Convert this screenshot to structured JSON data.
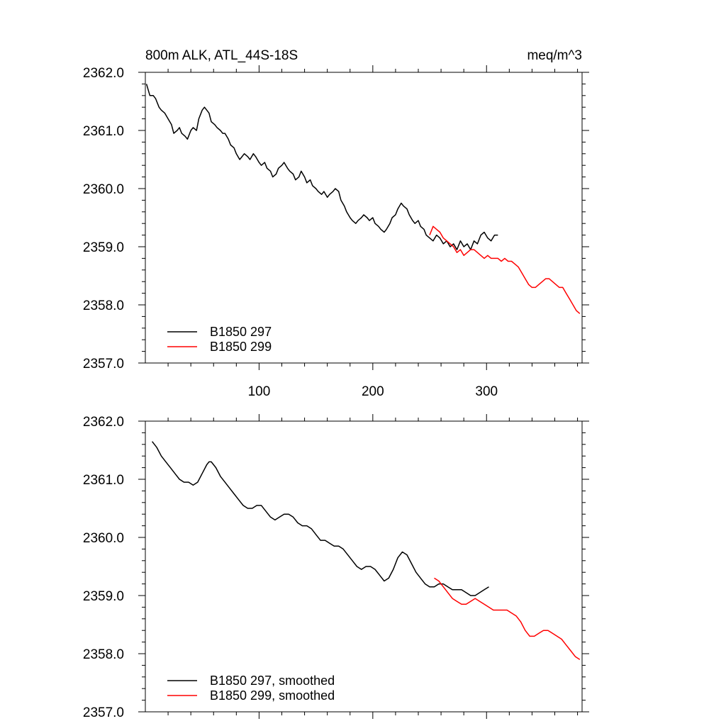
{
  "chart_data": [
    {
      "type": "line",
      "title": "800m ALK, ATL_44S-18S",
      "units": "meq/m^3",
      "xlim": [
        0,
        384
      ],
      "ylim": [
        2357.0,
        2362.0
      ],
      "x_ticks": [
        100,
        200,
        300
      ],
      "x_tick_labels": [
        "100",
        "200",
        "300"
      ],
      "y_ticks": [
        2357.0,
        2358.0,
        2359.0,
        2360.0,
        2361.0,
        2362.0
      ],
      "y_tick_labels": [
        "2357.0",
        "2358.0",
        "2359.0",
        "2360.0",
        "2361.0",
        "2362.0"
      ],
      "legend_position": "bottom-left",
      "series": [
        {
          "name": "B1850 297",
          "color": "#000000",
          "x": [
            1,
            4,
            7,
            9,
            12,
            14,
            17,
            20,
            23,
            25,
            28,
            30,
            32,
            35,
            37,
            40,
            42,
            45,
            47,
            50,
            52,
            54,
            56,
            58,
            61,
            63,
            66,
            68,
            70,
            73,
            75,
            78,
            80,
            83,
            85,
            87,
            90,
            92,
            95,
            97,
            100,
            102,
            105,
            107,
            110,
            112,
            115,
            117,
            120,
            122,
            125,
            127,
            130,
            132,
            135,
            137,
            140,
            142,
            145,
            147,
            150,
            152,
            155,
            157,
            160,
            162,
            165,
            167,
            170,
            172,
            175,
            177,
            180,
            182,
            185,
            187,
            190,
            192,
            195,
            197,
            200,
            202,
            205,
            207,
            210,
            212,
            215,
            217,
            220,
            222,
            225,
            227,
            230,
            232,
            235,
            237,
            240,
            242,
            245,
            247,
            250,
            253,
            256,
            259,
            262,
            265,
            268,
            271,
            274,
            277,
            280,
            283,
            286,
            289,
            292,
            295,
            298,
            301,
            304,
            307,
            310
          ],
          "values": [
            2361.8,
            2361.6,
            2361.6,
            2361.55,
            2361.4,
            2361.35,
            2361.3,
            2361.2,
            2361.1,
            2360.95,
            2361.0,
            2361.05,
            2360.95,
            2360.9,
            2360.85,
            2361.0,
            2361.05,
            2361.0,
            2361.2,
            2361.35,
            2361.4,
            2361.35,
            2361.3,
            2361.15,
            2361.1,
            2361.05,
            2361.0,
            2360.95,
            2360.95,
            2360.85,
            2360.75,
            2360.7,
            2360.6,
            2360.5,
            2360.55,
            2360.6,
            2360.55,
            2360.5,
            2360.6,
            2360.55,
            2360.45,
            2360.4,
            2360.45,
            2360.35,
            2360.3,
            2360.2,
            2360.25,
            2360.35,
            2360.4,
            2360.45,
            2360.35,
            2360.3,
            2360.25,
            2360.15,
            2360.2,
            2360.3,
            2360.2,
            2360.1,
            2360.15,
            2360.05,
            2360.0,
            2359.95,
            2359.9,
            2359.95,
            2359.85,
            2359.9,
            2359.95,
            2360.0,
            2359.95,
            2359.8,
            2359.7,
            2359.6,
            2359.5,
            2359.45,
            2359.4,
            2359.45,
            2359.5,
            2359.55,
            2359.5,
            2359.45,
            2359.5,
            2359.4,
            2359.35,
            2359.3,
            2359.25,
            2359.3,
            2359.4,
            2359.5,
            2359.55,
            2359.65,
            2359.75,
            2359.7,
            2359.65,
            2359.55,
            2359.45,
            2359.4,
            2359.45,
            2359.35,
            2359.3,
            2359.2,
            2359.15,
            2359.1,
            2359.2,
            2359.15,
            2359.05,
            2359.1,
            2359.0,
            2359.05,
            2358.95,
            2359.1,
            2359.0,
            2359.05,
            2358.95,
            2359.1,
            2359.05,
            2359.2,
            2359.25,
            2359.15,
            2359.1,
            2359.2,
            2359.2
          ]
        },
        {
          "name": "B1850 299",
          "color": "#ff0000",
          "x": [
            250,
            253,
            256,
            259,
            262,
            265,
            268,
            271,
            274,
            277,
            280,
            283,
            286,
            289,
            292,
            295,
            298,
            301,
            304,
            307,
            310,
            313,
            316,
            319,
            322,
            325,
            328,
            331,
            334,
            337,
            340,
            343,
            346,
            349,
            352,
            355,
            358,
            361,
            364,
            367,
            370,
            373,
            376,
            379,
            382
          ],
          "values": [
            2359.2,
            2359.35,
            2359.3,
            2359.25,
            2359.15,
            2359.1,
            2359.05,
            2359.0,
            2358.9,
            2358.95,
            2358.85,
            2358.9,
            2358.95,
            2358.95,
            2358.9,
            2358.85,
            2358.8,
            2358.85,
            2358.8,
            2358.8,
            2358.8,
            2358.75,
            2358.8,
            2358.75,
            2358.75,
            2358.7,
            2358.65,
            2358.55,
            2358.45,
            2358.35,
            2358.3,
            2358.3,
            2358.35,
            2358.4,
            2358.45,
            2358.45,
            2358.4,
            2358.35,
            2358.3,
            2358.3,
            2358.2,
            2358.1,
            2358.0,
            2357.9,
            2357.85
          ]
        }
      ]
    },
    {
      "type": "line",
      "title": "",
      "xlim": [
        0,
        384
      ],
      "ylim": [
        2357.0,
        2362.0
      ],
      "x_ticks": [
        100,
        200,
        300
      ],
      "y_ticks": [
        2357.0,
        2358.0,
        2359.0,
        2360.0,
        2361.0,
        2362.0
      ],
      "y_tick_labels": [
        "2357.0",
        "2358.0",
        "2359.0",
        "2360.0",
        "2361.0",
        "2362.0"
      ],
      "legend_position": "bottom-left",
      "series": [
        {
          "name": "B1850 297, smoothed",
          "color": "#000000",
          "x": [
            6,
            10,
            14,
            18,
            22,
            26,
            30,
            34,
            38,
            42,
            46,
            50,
            54,
            56,
            58,
            62,
            66,
            70,
            74,
            78,
            82,
            86,
            90,
            94,
            98,
            102,
            106,
            110,
            114,
            118,
            122,
            126,
            130,
            134,
            138,
            142,
            146,
            150,
            154,
            158,
            162,
            166,
            170,
            174,
            178,
            182,
            186,
            190,
            194,
            198,
            202,
            206,
            210,
            214,
            218,
            222,
            226,
            230,
            234,
            238,
            242,
            246,
            250,
            254,
            258,
            262,
            266,
            270,
            274,
            278,
            282,
            286,
            290,
            294,
            298,
            302
          ],
          "values": [
            2361.65,
            2361.55,
            2361.4,
            2361.3,
            2361.2,
            2361.1,
            2361.0,
            2360.95,
            2360.95,
            2360.9,
            2360.95,
            2361.1,
            2361.25,
            2361.3,
            2361.3,
            2361.2,
            2361.05,
            2360.95,
            2360.85,
            2360.75,
            2360.65,
            2360.55,
            2360.5,
            2360.5,
            2360.55,
            2360.55,
            2360.45,
            2360.35,
            2360.3,
            2360.35,
            2360.4,
            2360.4,
            2360.35,
            2360.25,
            2360.2,
            2360.2,
            2360.15,
            2360.05,
            2359.95,
            2359.95,
            2359.9,
            2359.85,
            2359.85,
            2359.8,
            2359.7,
            2359.6,
            2359.5,
            2359.45,
            2359.5,
            2359.5,
            2359.45,
            2359.35,
            2359.25,
            2359.3,
            2359.45,
            2359.65,
            2359.75,
            2359.7,
            2359.55,
            2359.4,
            2359.3,
            2359.2,
            2359.15,
            2359.15,
            2359.2,
            2359.2,
            2359.15,
            2359.1,
            2359.1,
            2359.1,
            2359.05,
            2359.0,
            2359.0,
            2359.05,
            2359.1,
            2359.15
          ]
        },
        {
          "name": "B1850 299, smoothed",
          "color": "#ff0000",
          "x": [
            254,
            258,
            262,
            266,
            270,
            274,
            278,
            282,
            286,
            290,
            294,
            298,
            302,
            306,
            310,
            314,
            318,
            322,
            326,
            330,
            334,
            338,
            342,
            346,
            350,
            354,
            358,
            362,
            366,
            370,
            374,
            378,
            382
          ],
          "values": [
            2359.3,
            2359.25,
            2359.15,
            2359.05,
            2358.95,
            2358.9,
            2358.85,
            2358.85,
            2358.9,
            2358.95,
            2358.9,
            2358.85,
            2358.8,
            2358.75,
            2358.75,
            2358.75,
            2358.75,
            2358.7,
            2358.65,
            2358.55,
            2358.4,
            2358.3,
            2358.3,
            2358.35,
            2358.4,
            2358.4,
            2358.35,
            2358.3,
            2358.25,
            2358.15,
            2358.05,
            2357.95,
            2357.9
          ]
        }
      ]
    }
  ]
}
